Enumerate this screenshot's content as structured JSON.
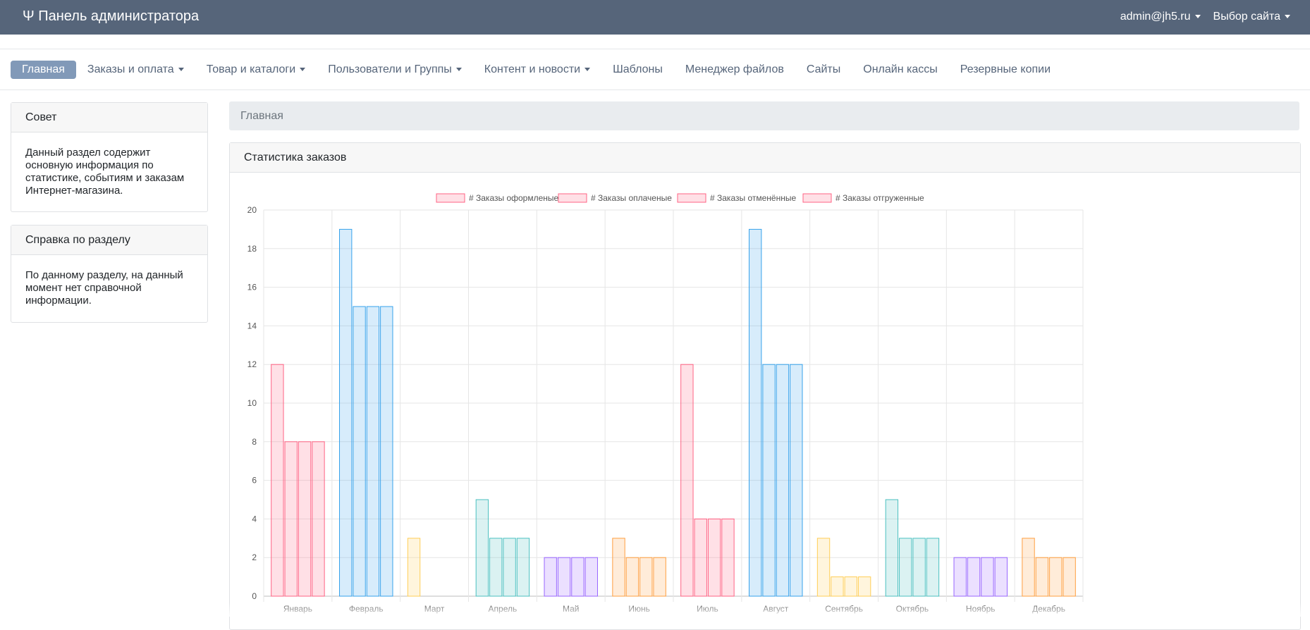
{
  "header": {
    "title": "Ψ Панель администратора",
    "user": "admin@jh5.ru",
    "site_select": "Выбор сайта"
  },
  "nav": {
    "items": [
      {
        "label": "Главная",
        "active": true,
        "dropdown": false
      },
      {
        "label": "Заказы и оплата",
        "dropdown": true
      },
      {
        "label": "Товар и каталоги",
        "dropdown": true
      },
      {
        "label": "Пользователи и Группы",
        "dropdown": true
      },
      {
        "label": "Контент и новости",
        "dropdown": true
      },
      {
        "label": "Шаблоны",
        "dropdown": false
      },
      {
        "label": "Менеджер файлов",
        "dropdown": false
      },
      {
        "label": "Сайты",
        "dropdown": false
      },
      {
        "label": "Онлайн кассы",
        "dropdown": false
      },
      {
        "label": "Резервные копии",
        "dropdown": false
      }
    ]
  },
  "sidebar": {
    "tip": {
      "title": "Совет",
      "text": "Данный раздел содержит основную информация по статистике, событиям и заказам Интернет-магазина."
    },
    "help": {
      "title": "Справка по разделу",
      "text": "По данному разделу, на данный момент нет справочной информации."
    }
  },
  "breadcrumb": "Главная",
  "stats": {
    "title": "Статистика заказов"
  },
  "colors": {
    "topbar": "#56657a",
    "nav_active": "#8199b8",
    "pink": "#ff6384",
    "blue": "#36a2eb",
    "yellow": "#ffce56",
    "teal": "#4bc0c0",
    "purple": "#9966ff",
    "orange": "#ff9f40"
  },
  "chart_data": {
    "type": "bar",
    "categories": [
      "Январь",
      "Февраль",
      "Март",
      "Апрель",
      "Май",
      "Июнь",
      "Июль",
      "Август",
      "Сентябрь",
      "Октябрь",
      "Ноябрь",
      "Декабрь"
    ],
    "category_colors": [
      "#ff6384",
      "#36a2eb",
      "#ffce56",
      "#4bc0c0",
      "#9966ff",
      "#ff9f40",
      "#ff6384",
      "#36a2eb",
      "#ffce56",
      "#4bc0c0",
      "#9966ff",
      "#ff9f40"
    ],
    "series": [
      {
        "name": "# Заказы оформленые",
        "values": [
          12,
          19,
          3,
          5,
          2,
          3,
          12,
          19,
          3,
          5,
          2,
          3
        ]
      },
      {
        "name": "# Заказы оплаченые",
        "values": [
          8,
          15,
          0,
          3,
          2,
          2,
          4,
          12,
          1,
          3,
          2,
          2
        ]
      },
      {
        "name": "# Заказы отменённые",
        "values": [
          8,
          15,
          0,
          3,
          2,
          2,
          4,
          12,
          1,
          3,
          2,
          2
        ]
      },
      {
        "name": "# Заказы отгруженные",
        "values": [
          8,
          15,
          0,
          3,
          2,
          2,
          4,
          12,
          1,
          3,
          2,
          2
        ]
      }
    ],
    "ylim": [
      0,
      20
    ],
    "yticks": [
      "0",
      "2",
      "4",
      "6",
      "8",
      "10",
      "12",
      "14",
      "16",
      "18",
      "20"
    ],
    "grid": true,
    "legend": "top"
  }
}
